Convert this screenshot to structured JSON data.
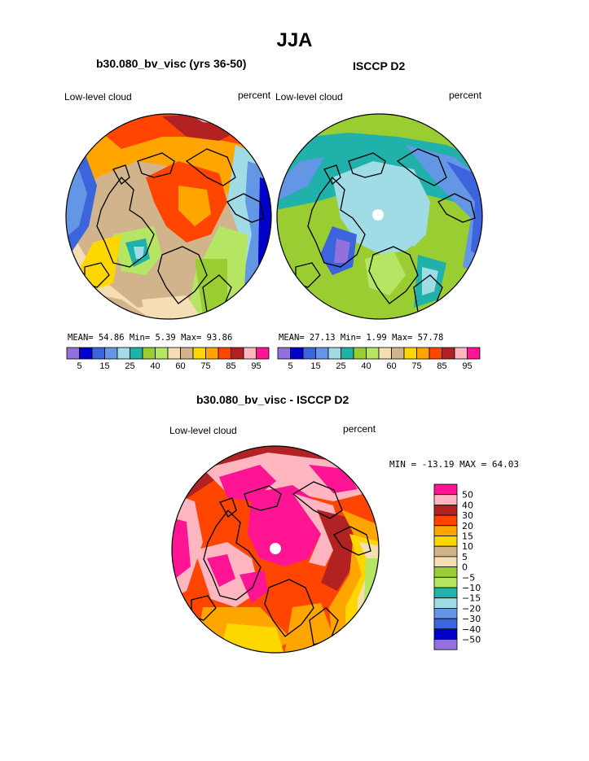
{
  "header": {
    "title": "JJA",
    "left_panel_title": "b30.080_bv_visc (yrs 36-50)",
    "right_panel_title": "ISCCP D2",
    "diff_panel_title": "b30.080_bv_visc - ISCCP D2"
  },
  "maps": {
    "left": {
      "field": "Low-level cloud",
      "units": "percent",
      "stats": "MEAN=   54.86  Min=    5.39  Max=   93.86"
    },
    "right": {
      "field": "Low-level cloud",
      "units": "percent",
      "stats": "MEAN=   27.13  Min=    1.99  Max=   57.78"
    },
    "diff": {
      "field": "Low-level cloud",
      "units": "percent",
      "stats": "MIN = -13.19 MAX =  64.03"
    }
  },
  "colorbar": {
    "colors": [
      "#9370db",
      "#0000c8",
      "#3c64dc",
      "#6496e6",
      "#a0dce6",
      "#20b2aa",
      "#9acd32",
      "#b4e664",
      "#f5deb3",
      "#d2b48c",
      "#ffd700",
      "#ffa500",
      "#ff4500",
      "#b22222",
      "#ffb6c1",
      "#ff1493"
    ],
    "tick_labels": [
      "5",
      "15",
      "25",
      "40",
      "60",
      "75",
      "85",
      "95"
    ]
  },
  "diff_colorbar": {
    "colors_top_to_bottom": [
      "#ff1493",
      "#ffb6c1",
      "#b22222",
      "#ff4500",
      "#ffa500",
      "#ffd700",
      "#d2b48c",
      "#f5deb3",
      "#9acd32",
      "#b4e664",
      "#20b2aa",
      "#a0dce6",
      "#6496e6",
      "#3c64dc",
      "#0000c8",
      "#9370db"
    ],
    "labels_top_to_bottom": [
      "50",
      "40",
      "30",
      "20",
      "15",
      "10",
      "5",
      "0",
      "−5",
      "−10",
      "−15",
      "−20",
      "−30",
      "−40",
      "−50"
    ]
  },
  "chart_data": [
    {
      "type": "heatmap",
      "title": "b30.080_bv_visc (yrs 36-50)",
      "field": "Low-level cloud",
      "units": "percent",
      "projection": "north polar stereographic",
      "mean": 54.86,
      "min": 5.39,
      "max": 93.86,
      "contour_levels": [
        5,
        10,
        15,
        20,
        25,
        30,
        40,
        50,
        60,
        70,
        75,
        80,
        85,
        90,
        95
      ]
    },
    {
      "type": "heatmap",
      "title": "ISCCP D2",
      "field": "Low-level cloud",
      "units": "percent",
      "projection": "north polar stereographic",
      "mean": 27.13,
      "min": 1.99,
      "max": 57.78,
      "contour_levels": [
        5,
        10,
        15,
        20,
        25,
        30,
        40,
        50,
        60,
        70,
        75,
        80,
        85,
        90,
        95
      ]
    },
    {
      "type": "heatmap",
      "title": "b30.080_bv_visc - ISCCP D2",
      "field": "Low-level cloud",
      "units": "percent",
      "projection": "north polar stereographic",
      "min": -13.19,
      "max": 64.03,
      "contour_levels": [
        -50,
        -40,
        -30,
        -20,
        -15,
        -10,
        -5,
        0,
        5,
        10,
        15,
        20,
        30,
        40,
        50
      ]
    }
  ]
}
